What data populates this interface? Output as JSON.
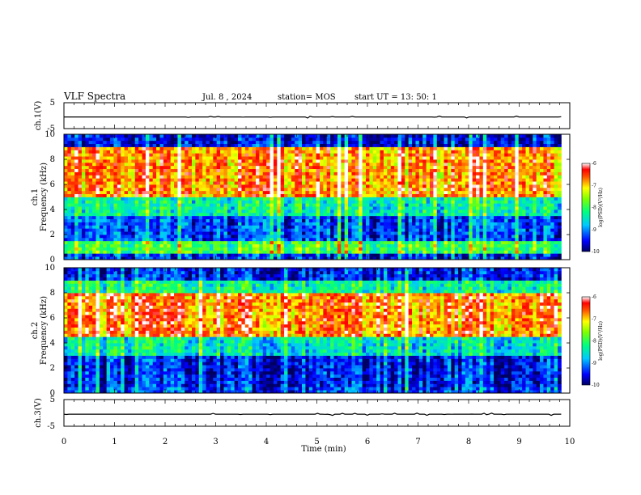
{
  "header": {
    "title": "VLF Spectra",
    "date": "Jul. 8 , 2024",
    "station": "station= MOS",
    "start": "start UT = 13: 50: 1"
  },
  "chart_data": [
    {
      "type": "line",
      "ylabel": "ch.1(V)",
      "ylim": [
        -5,
        5
      ],
      "yticks": [
        "5",
        "-5"
      ],
      "x": [
        0,
        9.83
      ],
      "values": [
        -0.5,
        -0.5
      ]
    },
    {
      "type": "heatmap",
      "ylabel": "ch.1",
      "ylabel2": "Frequency (kHz)",
      "ylim": [
        0,
        10
      ],
      "yticks": [
        "10",
        "8",
        "6",
        "4",
        "2",
        "0"
      ],
      "xlim": [
        0,
        9.83
      ],
      "band_levels": [
        {
          "f": [
            0,
            0.5
          ],
          "level": -9.5
        },
        {
          "f": [
            0.5,
            1.5
          ],
          "level": -8.0
        },
        {
          "f": [
            1.5,
            3.5
          ],
          "level": -9.3
        },
        {
          "f": [
            3.5,
            5.0
          ],
          "level": -8.4
        },
        {
          "f": [
            5.0,
            9.0
          ],
          "level": -6.8
        },
        {
          "f": [
            9.0,
            10
          ],
          "level": -9.6
        }
      ],
      "colorbar": {
        "label": "log(PSD)(V²/Hz)",
        "ticks": [
          "-6",
          "-7",
          "-8",
          "-9",
          "-10"
        ],
        "range": [
          -10,
          -6
        ]
      }
    },
    {
      "type": "heatmap",
      "ylabel": "ch.2",
      "ylabel2": "Frequency (kHz)",
      "ylim": [
        0,
        10
      ],
      "yticks": [
        "10",
        "8",
        "6",
        "4",
        "2",
        "0"
      ],
      "xlim": [
        0,
        9.83
      ],
      "band_levels": [
        {
          "f": [
            0,
            0.5
          ],
          "level": -9.3
        },
        {
          "f": [
            0.5,
            3.0
          ],
          "level": -9.5
        },
        {
          "f": [
            3.0,
            4.5
          ],
          "level": -8.5
        },
        {
          "f": [
            4.5,
            8.0
          ],
          "level": -6.7
        },
        {
          "f": [
            8.0,
            9.0
          ],
          "level": -8.3
        },
        {
          "f": [
            9.0,
            10
          ],
          "level": -9.5
        }
      ],
      "colorbar": {
        "label": "log(PSD)(V²/Hz)",
        "ticks": [
          "-6",
          "-7",
          "-8",
          "-9",
          "-10"
        ],
        "range": [
          -10,
          -6
        ]
      }
    },
    {
      "type": "line",
      "ylabel": "ch.3(V)",
      "ylim": [
        -5,
        5
      ],
      "yticks": [
        "5",
        "-5"
      ],
      "x": [
        0,
        9.83
      ],
      "values": [
        -0.5,
        -0.5
      ]
    }
  ],
  "xaxis": {
    "label": "Time (min)",
    "ticks": [
      "0",
      "1",
      "2",
      "3",
      "4",
      "5",
      "6",
      "7",
      "8",
      "9",
      "10"
    ],
    "xlim": [
      0,
      10
    ]
  }
}
